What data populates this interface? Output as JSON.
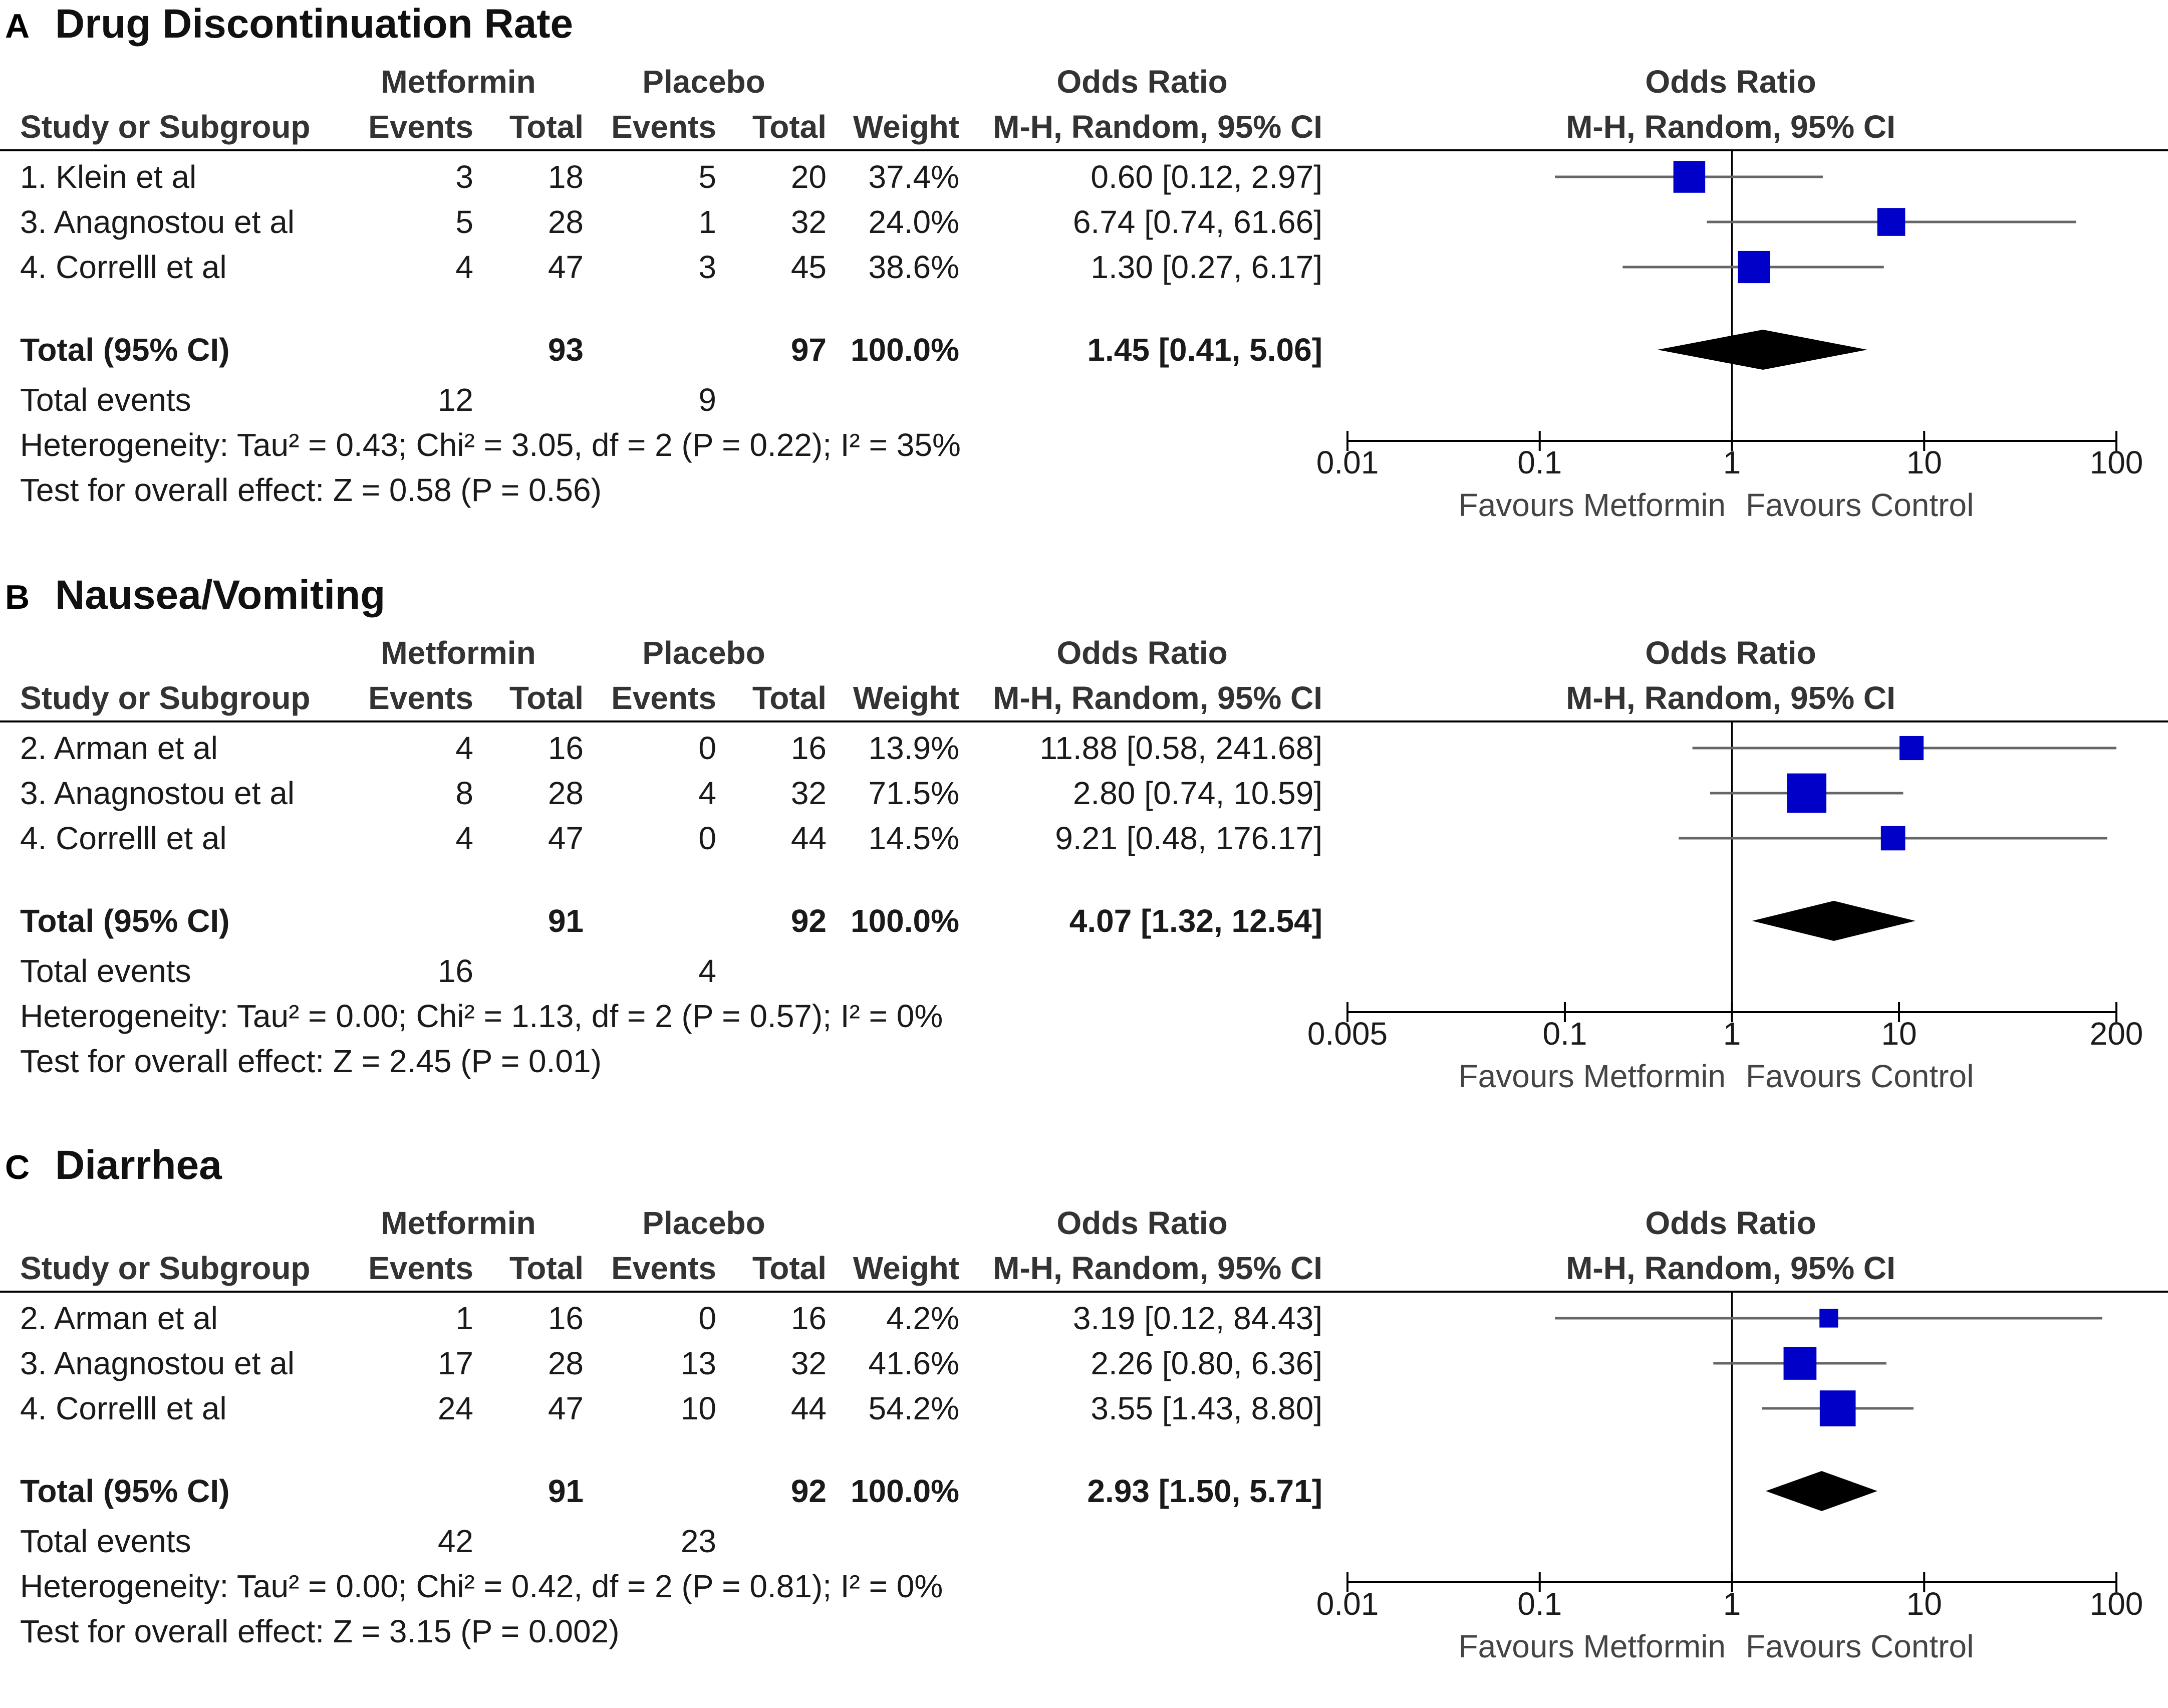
{
  "figure": {
    "colors": {
      "square": "#0000c8",
      "ci_line": "#666666",
      "diamond": "#000000",
      "text": "#1a1a1a",
      "rule": "#000000"
    }
  },
  "chart_data": [
    {
      "type": "forest",
      "letter": "A",
      "title": "Drug Discontinuation Rate",
      "headers": {
        "group1": "Metformin",
        "group2": "Placebo",
        "study": "Study or Subgroup",
        "events": "Events",
        "total": "Total",
        "weight": "Weight",
        "or_line1": "Odds Ratio",
        "or_line2": "M-H, Random, 95% CI",
        "plot_line1": "Odds Ratio",
        "plot_line2": "M-H, Random, 95% CI"
      },
      "studies": [
        {
          "name": "1. Klein et al",
          "e1": "3",
          "n1": "18",
          "e2": "5",
          "n2": "20",
          "weight": "37.4%",
          "ci_text": "0.60 [0.12, 2.97]",
          "or": 0.6,
          "lo": 0.12,
          "hi": 2.97,
          "w": 37.4
        },
        {
          "name": "3. Anagnostou et al",
          "e1": "5",
          "n1": "28",
          "e2": "1",
          "n2": "32",
          "weight": "24.0%",
          "ci_text": "6.74 [0.74, 61.66]",
          "or": 6.74,
          "lo": 0.74,
          "hi": 61.66,
          "w": 24.0
        },
        {
          "name": "4. Correlll et al",
          "e1": "4",
          "n1": "47",
          "e2": "3",
          "n2": "45",
          "weight": "38.6%",
          "ci_text": "1.30 [0.27, 6.17]",
          "or": 1.3,
          "lo": 0.27,
          "hi": 6.17,
          "w": 38.6
        }
      ],
      "total": {
        "label": "Total (95% CI)",
        "n1": "93",
        "n2": "97",
        "weight": "100.0%",
        "ci_text": "1.45 [0.41, 5.06]",
        "or": 1.45,
        "lo": 0.41,
        "hi": 5.06
      },
      "total_events": {
        "label": "Total events",
        "e1": "12",
        "e2": "9"
      },
      "heterogeneity": "Heterogeneity: Tau² = 0.43; Chi² = 3.05, df = 2 (P = 0.22); I² = 35%",
      "overall_effect": "Test for overall effect: Z = 0.58 (P = 0.56)",
      "axis": {
        "scale": "log",
        "min": 0.01,
        "max": 100,
        "ticks": [
          0.01,
          0.1,
          1,
          10,
          100
        ],
        "tick_labels": [
          "0.01",
          "0.1",
          "1",
          "10",
          "100"
        ]
      },
      "favours_left": "Favours Metformin",
      "favours_right": "Favours Control"
    },
    {
      "type": "forest",
      "letter": "B",
      "title": "Nausea/Vomiting",
      "headers": {
        "group1": "Metformin",
        "group2": "Placebo",
        "study": "Study or Subgroup",
        "events": "Events",
        "total": "Total",
        "weight": "Weight",
        "or_line1": "Odds Ratio",
        "or_line2": "M-H, Random, 95% CI",
        "plot_line1": "Odds Ratio",
        "plot_line2": "M-H, Random, 95% CI"
      },
      "studies": [
        {
          "name": "2.  Arman et al",
          "e1": "4",
          "n1": "16",
          "e2": "0",
          "n2": "16",
          "weight": "13.9%",
          "ci_text": "11.88 [0.58, 241.68]",
          "or": 11.88,
          "lo": 0.58,
          "hi": 241.68,
          "w": 13.9
        },
        {
          "name": "3. Anagnostou et al",
          "e1": "8",
          "n1": "28",
          "e2": "4",
          "n2": "32",
          "weight": "71.5%",
          "ci_text": "2.80 [0.74, 10.59]",
          "or": 2.8,
          "lo": 0.74,
          "hi": 10.59,
          "w": 71.5
        },
        {
          "name": "4. Correlll et al",
          "e1": "4",
          "n1": "47",
          "e2": "0",
          "n2": "44",
          "weight": "14.5%",
          "ci_text": "9.21 [0.48, 176.17]",
          "or": 9.21,
          "lo": 0.48,
          "hi": 176.17,
          "w": 14.5
        }
      ],
      "total": {
        "label": "Total (95% CI)",
        "n1": "91",
        "n2": "92",
        "weight": "100.0%",
        "ci_text": "4.07 [1.32, 12.54]",
        "or": 4.07,
        "lo": 1.32,
        "hi": 12.54
      },
      "total_events": {
        "label": "Total events",
        "e1": "16",
        "e2": "4"
      },
      "heterogeneity": "Heterogeneity: Tau² = 0.00; Chi² = 1.13, df = 2 (P = 0.57); I² = 0%",
      "overall_effect": "Test for overall effect: Z = 2.45 (P = 0.01)",
      "axis": {
        "scale": "log",
        "min": 0.005,
        "max": 200,
        "ticks": [
          0.005,
          0.1,
          1,
          10,
          200
        ],
        "tick_labels": [
          "0.005",
          "0.1",
          "1",
          "10",
          "200"
        ]
      },
      "favours_left": "Favours Metformin",
      "favours_right": "Favours Control"
    },
    {
      "type": "forest",
      "letter": "C",
      "title": "Diarrhea",
      "headers": {
        "group1": "Metformin",
        "group2": "Placebo",
        "study": "Study or Subgroup",
        "events": "Events",
        "total": "Total",
        "weight": "Weight",
        "or_line1": "Odds Ratio",
        "or_line2": "M-H, Random, 95% CI",
        "plot_line1": "Odds Ratio",
        "plot_line2": "M-H, Random, 95% CI"
      },
      "studies": [
        {
          "name": "2.  Arman et al",
          "e1": "1",
          "n1": "16",
          "e2": "0",
          "n2": "16",
          "weight": "4.2%",
          "ci_text": "3.19 [0.12, 84.43]",
          "or": 3.19,
          "lo": 0.12,
          "hi": 84.43,
          "w": 4.2
        },
        {
          "name": "3. Anagnostou et al",
          "e1": "17",
          "n1": "28",
          "e2": "13",
          "n2": "32",
          "weight": "41.6%",
          "ci_text": "2.26 [0.80, 6.36]",
          "or": 2.26,
          "lo": 0.8,
          "hi": 6.36,
          "w": 41.6
        },
        {
          "name": "4. Correlll et al",
          "e1": "24",
          "n1": "47",
          "e2": "10",
          "n2": "44",
          "weight": "54.2%",
          "ci_text": "3.55 [1.43, 8.80]",
          "or": 3.55,
          "lo": 1.43,
          "hi": 8.8,
          "w": 54.2
        }
      ],
      "total": {
        "label": "Total (95% CI)",
        "n1": "91",
        "n2": "92",
        "weight": "100.0%",
        "ci_text": "2.93 [1.50, 5.71]",
        "or": 2.93,
        "lo": 1.5,
        "hi": 5.71
      },
      "total_events": {
        "label": "Total events",
        "e1": "42",
        "e2": "23"
      },
      "heterogeneity": "Heterogeneity: Tau² = 0.00; Chi² = 0.42, df = 2 (P = 0.81); I² = 0%",
      "overall_effect": "Test for overall effect: Z = 3.15 (P = 0.002)",
      "axis": {
        "scale": "log",
        "min": 0.01,
        "max": 100,
        "ticks": [
          0.01,
          0.1,
          1,
          10,
          100
        ],
        "tick_labels": [
          "0.01",
          "0.1",
          "1",
          "10",
          "100"
        ]
      },
      "favours_left": "Favours Metformin",
      "favours_right": "Favours Control"
    }
  ]
}
